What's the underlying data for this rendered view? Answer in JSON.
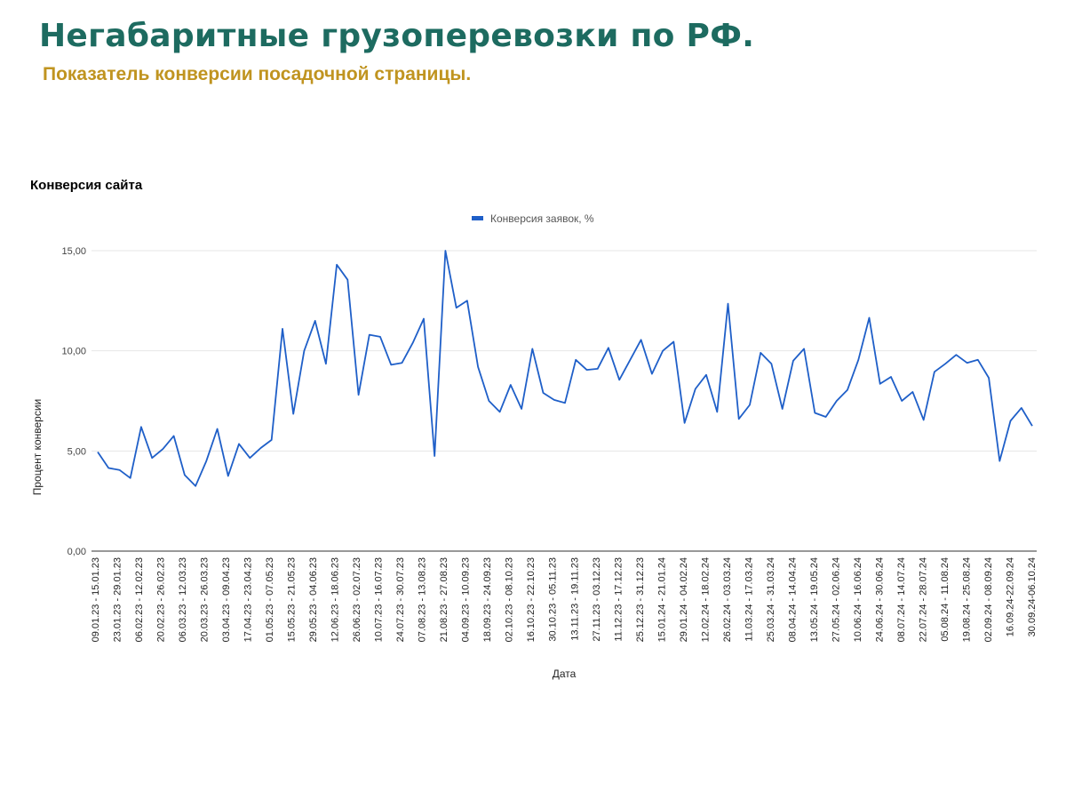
{
  "header": {
    "title": "Негабаритные грузоперевозки по РФ.",
    "subtitle": "Показатель конверсии посадочной страницы."
  },
  "colors": {
    "title": "#1d6b60",
    "subtitle": "#c09420",
    "series": "#1f5fc8",
    "gridline": "#e6e6e6",
    "axis": "#333333"
  },
  "chart_data": {
    "type": "line",
    "title": "Конверсия сайта",
    "xlabel": "Дата",
    "ylabel": "Процент конверсии",
    "ylim": [
      0,
      15
    ],
    "yticks": [
      "0,00",
      "5,00",
      "10,00",
      "15,00"
    ],
    "ytick_values": [
      0,
      5,
      10,
      15
    ],
    "grid": true,
    "legend_position": "top",
    "x_labels": [
      "09.01.23 - 15.01.23",
      "23.01.23 - 29.01.23",
      "06.02.23 - 12.02.23",
      "20.02.23 - 26.02.23",
      "06.03.23 - 12.03.23",
      "20.03.23 - 26.03.23",
      "03.04.23 - 09.04.23",
      "17.04.23 - 23.04.23",
      "01.05.23 - 07.05.23",
      "15.05.23 - 21.05.23",
      "29.05.23 - 04.06.23",
      "12.06.23 - 18.06.23",
      "26.06.23 - 02.07.23",
      "10.07.23 - 16.07.23",
      "24.07.23 - 30.07.23",
      "07.08.23 - 13.08.23",
      "21.08.23 - 27.08.23",
      "04.09.23 - 10.09.23",
      "18.09.23 - 24.09.23",
      "02.10.23 - 08.10.23",
      "16.10.23 - 22.10.23",
      "30.10.23 - 05.11.23",
      "13.11.23 - 19.11.23",
      "27.11.23 - 03.12.23",
      "11.12.23 - 17.12.23",
      "25.12.23 - 31.12.23",
      "15.01.24 - 21.01.24",
      "29.01.24 - 04.02.24",
      "12.02.24 - 18.02.24",
      "26.02.24 - 03.03.24",
      "11.03.24 - 17.03.24",
      "25.03.24 - 31.03.24",
      "08.04.24 - 14.04.24",
      "13.05.24 - 19.05.24",
      "27.05.24 - 02.06.24",
      "10.06.24 - 16.06.24",
      "24.06.24 - 30.06.24",
      "08.07.24 - 14.07.24",
      "22.07.24 - 28.07.24",
      "05.08.24 - 11.08.24",
      "19.08.24 - 25.08.24",
      "02.09.24 - 08.09.24",
      "16.09.24-22.09.24",
      "30.09.24-06.10.24"
    ],
    "series": [
      {
        "name": "Конверсия заявок, %",
        "values": [
          4.95,
          4.15,
          4.05,
          3.65,
          6.2,
          4.65,
          5.1,
          5.75,
          3.8,
          3.25,
          4.5,
          6.1,
          3.75,
          5.35,
          4.65,
          5.15,
          5.55,
          11.1,
          6.85,
          10.0,
          11.5,
          9.35,
          14.3,
          13.55,
          7.8,
          10.8,
          10.7,
          9.3,
          9.4,
          10.4,
          11.6,
          4.75,
          15.0,
          12.15,
          12.5,
          9.2,
          7.5,
          6.95,
          8.3,
          7.1,
          10.1,
          7.9,
          7.55,
          7.4,
          9.55,
          9.05,
          9.1,
          10.15,
          8.55,
          9.55,
          10.55,
          8.85,
          10.0,
          10.45,
          6.4,
          8.1,
          8.8,
          6.95,
          12.35,
          6.6,
          7.3,
          9.9,
          9.35,
          7.1,
          9.5,
          10.1,
          6.9,
          6.7,
          7.5,
          8.05,
          9.55,
          11.65,
          8.35,
          8.7,
          7.5,
          7.95,
          6.55,
          8.95,
          9.35,
          9.8,
          9.4,
          9.55,
          8.65,
          4.5,
          6.5,
          7.15,
          6.25
        ]
      }
    ]
  }
}
